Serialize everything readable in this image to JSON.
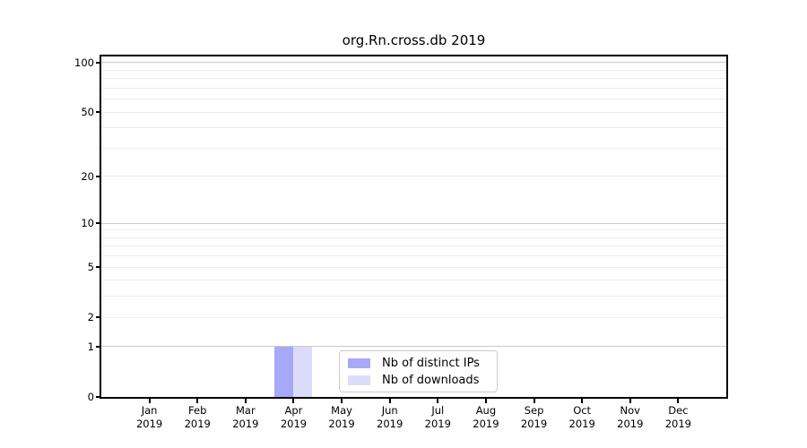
{
  "figure": {
    "title": "org.Rn.cross.db 2019"
  },
  "legend": {
    "items": [
      {
        "label": "Nb of distinct IPs",
        "color": "#a8a8f8"
      },
      {
        "label": "Nb of downloads",
        "color": "#dcdcfa"
      }
    ]
  },
  "colors": {
    "bar_distinct_ips": "#a8a8f8",
    "bar_downloads": "#dcdcfa",
    "grid_major": "#c9c9c9",
    "grid_minor": "#ececec",
    "axis": "#000000"
  },
  "chart_data": {
    "type": "bar",
    "title": "org.Rn.cross.db 2019",
    "categories": [
      "Jan 2019",
      "Feb 2019",
      "Mar 2019",
      "Apr 2019",
      "May 2019",
      "Jun 2019",
      "Jul 2019",
      "Aug 2019",
      "Sep 2019",
      "Oct 2019",
      "Nov 2019",
      "Dec 2019"
    ],
    "series": [
      {
        "name": "Nb of distinct IPs",
        "color": "#a8a8f8",
        "values": [
          0,
          0,
          0,
          1,
          0,
          0,
          0,
          0,
          0,
          0,
          0,
          0
        ]
      },
      {
        "name": "Nb of downloads",
        "color": "#dcdcfa",
        "values": [
          0,
          0,
          0,
          1,
          0,
          0,
          0,
          0,
          0,
          0,
          0,
          0
        ]
      }
    ],
    "xlabel": "",
    "ylabel": "",
    "yscale": "log1p",
    "ylim": [
      0,
      100
    ],
    "yticks": [
      0,
      1,
      2,
      5,
      10,
      20,
      50,
      100
    ],
    "major_gridlines": [
      1,
      10,
      100
    ],
    "minor_gridlines": [
      2,
      3,
      4,
      5,
      6,
      7,
      8,
      9,
      20,
      30,
      40,
      50,
      60,
      70,
      80,
      90
    ],
    "grid": true,
    "legend_position": "lower center"
  }
}
